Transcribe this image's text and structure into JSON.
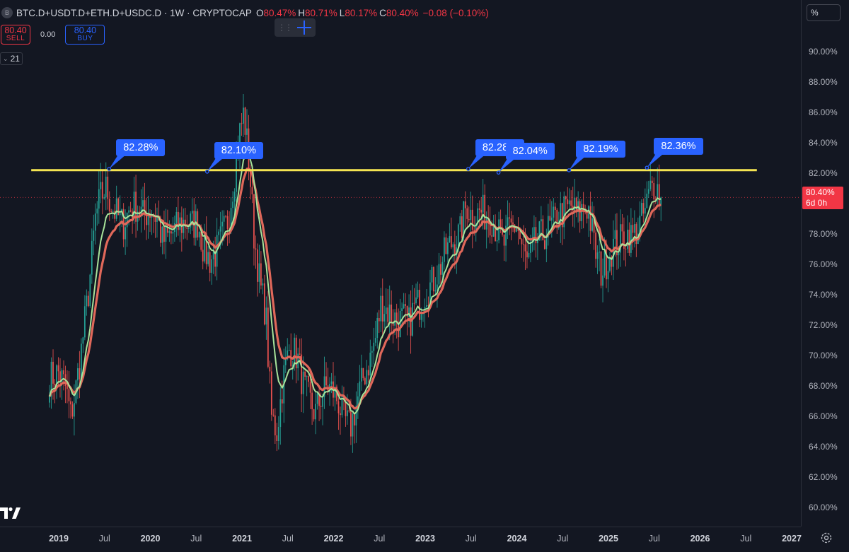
{
  "header": {
    "symbol_icon": "B",
    "title": "BTC.D+USDT.D+ETH.D+USDC.D · 1W · CRYPTOCAP",
    "ohlc": [
      {
        "k": "O",
        "v": "80.47%"
      },
      {
        "k": "H",
        "v": "80.71%"
      },
      {
        "k": "L",
        "v": "80.17%"
      },
      {
        "k": "C",
        "v": "80.40%"
      }
    ],
    "change": "−0.08 (−0.10%)"
  },
  "trade": {
    "sell_price": "80.40",
    "sell_label": "SELL",
    "spread": "0.00",
    "buy_price": "80.40",
    "buy_label": "BUY"
  },
  "indicator_count": "21",
  "scale_toggle": "%",
  "last_price": {
    "value": "80.40%",
    "countdown": "6d 0h"
  },
  "colors": {
    "up": "#26a69a",
    "down": "#ef5350",
    "ma_fast": "#a8e39a",
    "ma_slow": "#e0685a",
    "resistance": "#f5e552",
    "callout": "#2962ff",
    "background": "#131722"
  },
  "chart_data": {
    "type": "candlestick",
    "timeframe": "1W",
    "ylim": [
      59.4,
      92.6
    ],
    "y_ticks": [
      "60.00%",
      "62.00%",
      "64.00%",
      "66.00%",
      "68.00%",
      "70.00%",
      "72.00%",
      "74.00%",
      "76.00%",
      "78.00%",
      "80.00%",
      "82.00%",
      "84.00%",
      "86.00%",
      "88.00%",
      "90.00%"
    ],
    "y_tick_values": [
      60,
      62,
      64,
      66,
      68,
      70,
      72,
      74,
      76,
      78,
      80,
      82,
      84,
      86,
      88,
      90
    ],
    "x_ticks": [
      {
        "label": "2019",
        "t": 2019.0,
        "year": true
      },
      {
        "label": "Jul",
        "t": 2019.5
      },
      {
        "label": "2020",
        "t": 2020.0,
        "year": true
      },
      {
        "label": "Jul",
        "t": 2020.5
      },
      {
        "label": "2021",
        "t": 2021.0,
        "year": true
      },
      {
        "label": "Jul",
        "t": 2021.5
      },
      {
        "label": "2022",
        "t": 2022.0,
        "year": true
      },
      {
        "label": "Jul",
        "t": 2022.5
      },
      {
        "label": "2023",
        "t": 2023.0,
        "year": true
      },
      {
        "label": "Jul",
        "t": 2023.5
      },
      {
        "label": "2024",
        "t": 2024.0,
        "year": true
      },
      {
        "label": "Jul",
        "t": 2024.5
      },
      {
        "label": "2025",
        "t": 2025.0,
        "year": true
      },
      {
        "label": "Jul",
        "t": 2025.5
      },
      {
        "label": "2026",
        "t": 2026.0,
        "year": true
      },
      {
        "label": "Jul",
        "t": 2026.5
      },
      {
        "label": "2027",
        "t": 2027.0,
        "year": true
      }
    ],
    "x_range": [
      2018.62,
      2027.05
    ],
    "close_series": [
      [
        2018.9,
        68.5
      ],
      [
        2019.0,
        68.9
      ],
      [
        2019.08,
        67.8
      ],
      [
        2019.13,
        66.0
      ],
      [
        2019.18,
        67.5
      ],
      [
        2019.25,
        70.5
      ],
      [
        2019.33,
        74.5
      ],
      [
        2019.4,
        79.0
      ],
      [
        2019.46,
        80.5
      ],
      [
        2019.52,
        81.0
      ],
      [
        2019.58,
        79.8
      ],
      [
        2019.63,
        79.3
      ],
      [
        2019.7,
        78.6
      ],
      [
        2019.77,
        79.6
      ],
      [
        2019.85,
        79.9
      ],
      [
        2019.92,
        79.2
      ],
      [
        2020.0,
        79.6
      ],
      [
        2020.08,
        79.0
      ],
      [
        2020.13,
        77.5
      ],
      [
        2020.2,
        77.8
      ],
      [
        2020.3,
        78.5
      ],
      [
        2020.38,
        78.8
      ],
      [
        2020.45,
        78.6
      ],
      [
        2020.52,
        78.8
      ],
      [
        2020.58,
        77.0
      ],
      [
        2020.65,
        76.3
      ],
      [
        2020.72,
        76.8
      ],
      [
        2020.78,
        77.8
      ],
      [
        2020.85,
        79.0
      ],
      [
        2020.92,
        82.0
      ],
      [
        2020.97,
        84.5
      ],
      [
        2021.02,
        86.0
      ],
      [
        2021.08,
        82.5
      ],
      [
        2021.13,
        78.0
      ],
      [
        2021.2,
        74.5
      ],
      [
        2021.26,
        72.8
      ],
      [
        2021.32,
        66.0
      ],
      [
        2021.38,
        65.0
      ],
      [
        2021.45,
        68.5
      ],
      [
        2021.52,
        70.5
      ],
      [
        2021.6,
        70.0
      ],
      [
        2021.67,
        68.0
      ],
      [
        2021.74,
        67.0
      ],
      [
        2021.8,
        66.2
      ],
      [
        2021.87,
        67.4
      ],
      [
        2021.93,
        68.0
      ],
      [
        2022.0,
        67.6
      ],
      [
        2022.05,
        67.0
      ],
      [
        2022.1,
        66.0
      ],
      [
        2022.18,
        65.2
      ],
      [
        2022.25,
        66.8
      ],
      [
        2022.32,
        68.5
      ],
      [
        2022.4,
        69.8
      ],
      [
        2022.46,
        71.2
      ],
      [
        2022.52,
        73.5
      ],
      [
        2022.58,
        73.0
      ],
      [
        2022.65,
        72.6
      ],
      [
        2022.7,
        72.2
      ],
      [
        2022.77,
        72.4
      ],
      [
        2022.82,
        72.0
      ],
      [
        2022.88,
        73.2
      ],
      [
        2022.95,
        73.5
      ],
      [
        2023.0,
        74.2
      ],
      [
        2023.06,
        74.6
      ],
      [
        2023.15,
        75.6
      ],
      [
        2023.22,
        76.8
      ],
      [
        2023.3,
        77.5
      ],
      [
        2023.38,
        78.0
      ],
      [
        2023.45,
        80.0
      ],
      [
        2023.52,
        79.0
      ],
      [
        2023.6,
        79.5
      ],
      [
        2023.68,
        79.2
      ],
      [
        2023.73,
        79.0
      ],
      [
        2023.8,
        78.0
      ],
      [
        2023.85,
        77.2
      ],
      [
        2023.92,
        78.3
      ],
      [
        2024.0,
        78.6
      ],
      [
        2024.06,
        77.0
      ],
      [
        2024.12,
        76.0
      ],
      [
        2024.2,
        77.5
      ],
      [
        2024.3,
        78.0
      ],
      [
        2024.38,
        78.5
      ],
      [
        2024.45,
        79.2
      ],
      [
        2024.52,
        79.5
      ],
      [
        2024.6,
        79.8
      ],
      [
        2024.66,
        79.2
      ],
      [
        2024.72,
        79.6
      ],
      [
        2024.78,
        79.8
      ],
      [
        2024.85,
        77.0
      ],
      [
        2024.92,
        75.5
      ],
      [
        2025.0,
        76.5
      ],
      [
        2025.05,
        77.2
      ],
      [
        2025.12,
        77.5
      ],
      [
        2025.2,
        78.0
      ],
      [
        2025.26,
        77.8
      ],
      [
        2025.33,
        78.5
      ],
      [
        2025.4,
        79.5
      ],
      [
        2025.46,
        81.0
      ],
      [
        2025.52,
        81.4
      ],
      [
        2025.55,
        80.6
      ],
      [
        2025.58,
        80.4
      ]
    ],
    "resistance_level": 82.2,
    "resistance_range": [
      2018.7,
      2026.62
    ],
    "annotations": [
      {
        "label": "82.28%",
        "t": 2019.55,
        "y": 82.28
      },
      {
        "label": "82.10%",
        "t": 2020.62,
        "y": 82.1
      },
      {
        "label": "82.28%",
        "t": 2023.47,
        "y": 82.28
      },
      {
        "label": "82.04%",
        "t": 2023.8,
        "y": 82.04
      },
      {
        "label": "82.19%",
        "t": 2024.57,
        "y": 82.19
      },
      {
        "label": "82.36%",
        "t": 2025.42,
        "y": 82.36
      }
    ],
    "last_value": 80.4
  }
}
